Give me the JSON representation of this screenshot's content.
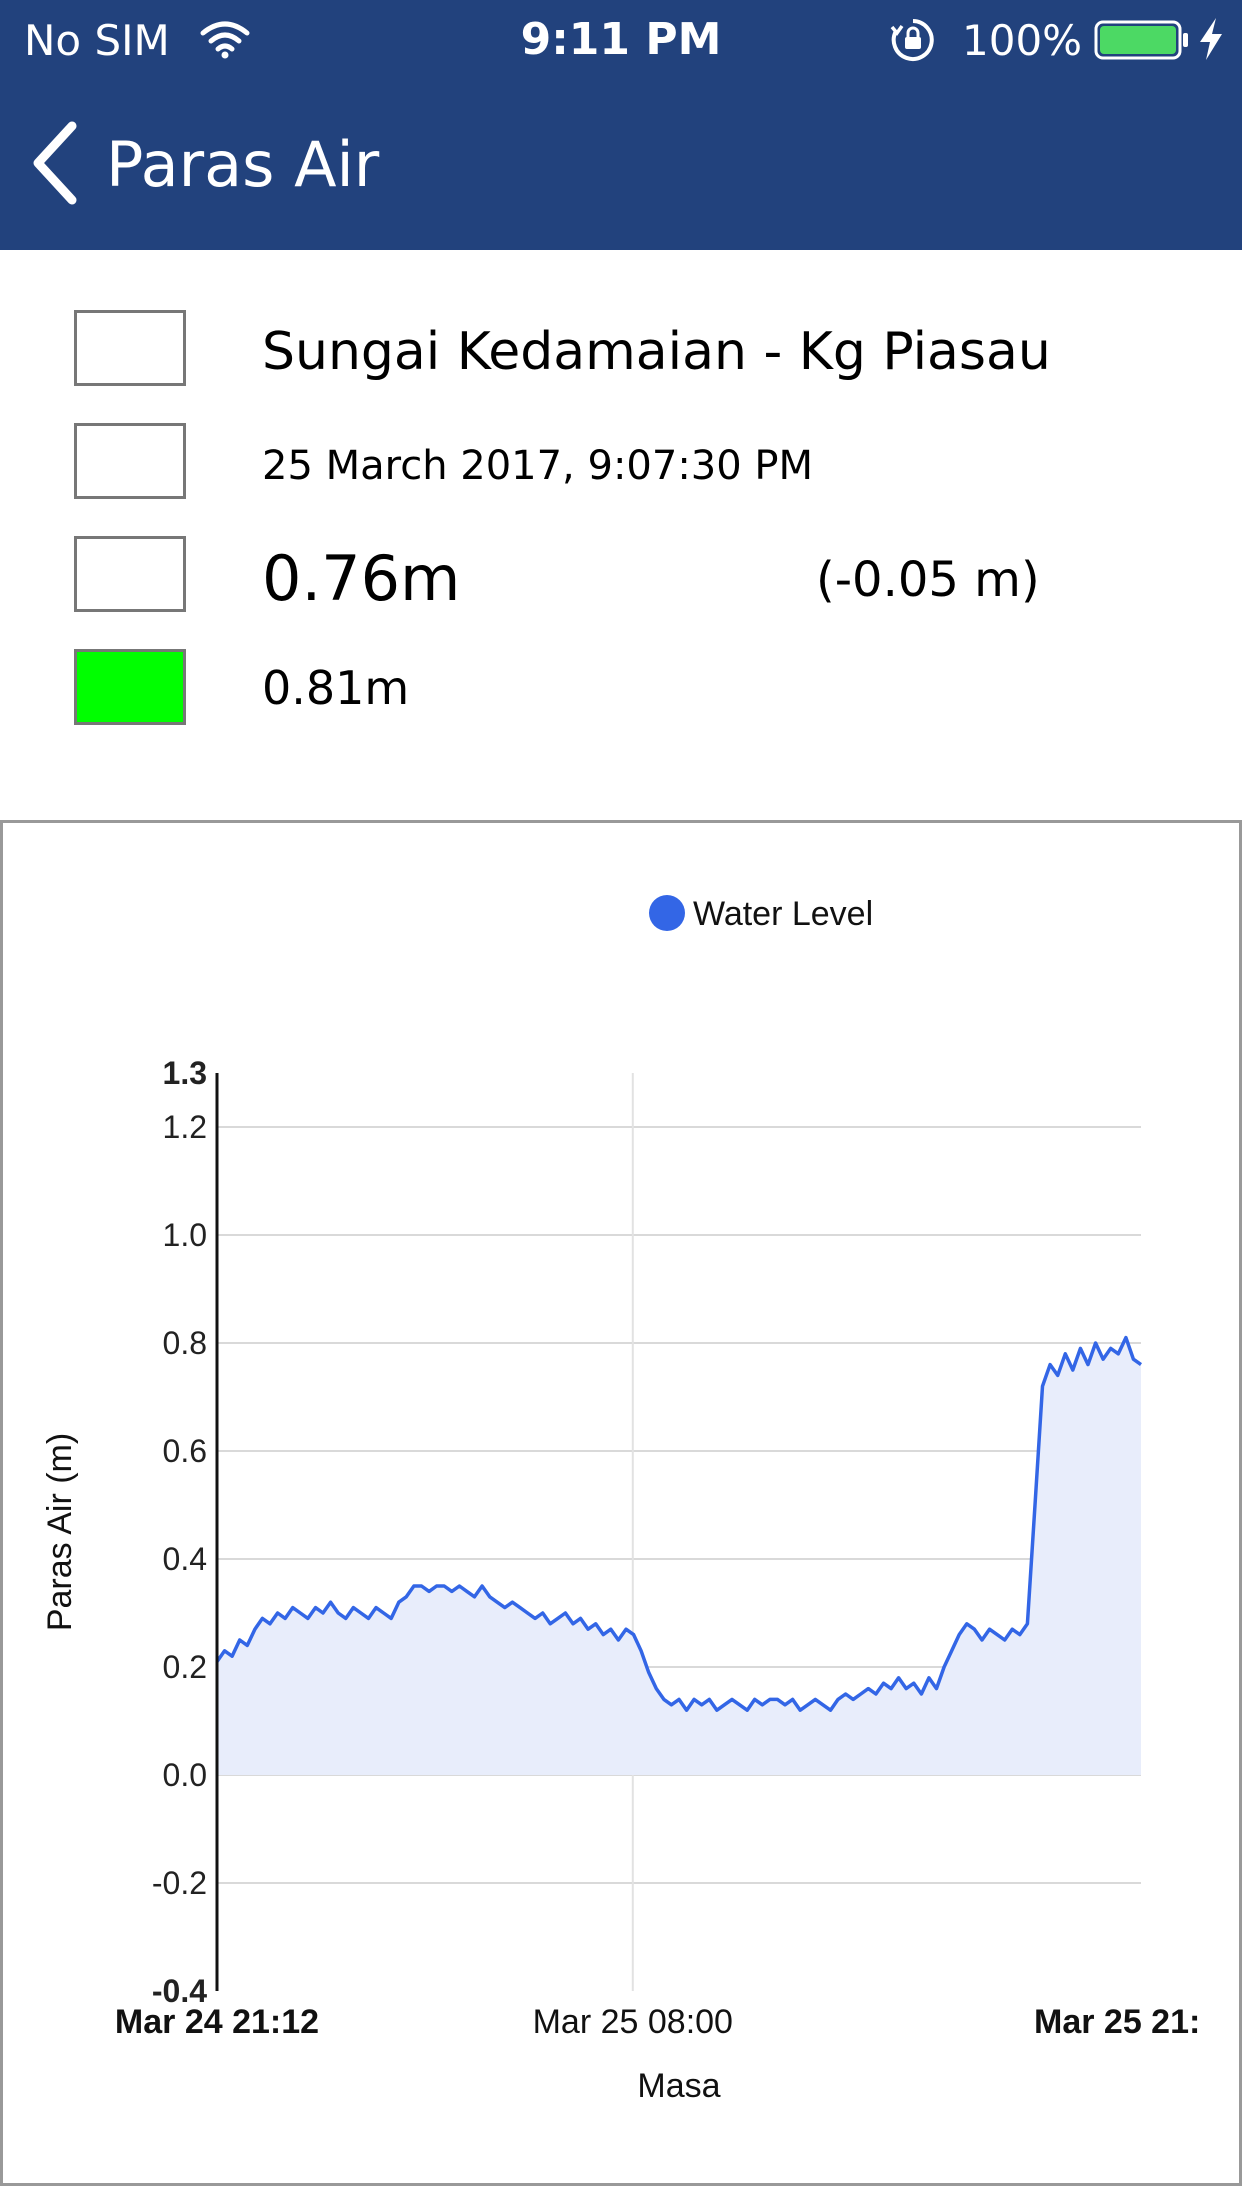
{
  "status_bar": {
    "carrier": "No SIM",
    "time": "9:11 PM",
    "battery": "100%",
    "icons": [
      "wifi-icon",
      "orientation-lock-icon",
      "battery-icon",
      "charging-icon"
    ]
  },
  "nav": {
    "title": "Paras Air",
    "back_icon": "chevron-left-icon"
  },
  "info": {
    "station": "Sungai Kedamaian - Kg Piasau",
    "datetime": "25 March 2017, 9:07:30 PM",
    "level": "0.76m",
    "change": "(-0.05 m)",
    "reference_level": "0.81m",
    "reference_color": "#00ff00"
  },
  "chart_data": {
    "type": "area",
    "legend": "Water Level",
    "series_color": "#3366e6",
    "fill_color": "#e8edfb",
    "xlabel": "Masa",
    "ylabel": "Paras Air (m)",
    "ylim": [
      -0.4,
      1.3
    ],
    "yticks": [
      {
        "v": 1.3,
        "label": "1.3",
        "bold": true
      },
      {
        "v": 1.2,
        "label": "1.2",
        "bold": false
      },
      {
        "v": 1.0,
        "label": "1.0",
        "bold": false
      },
      {
        "v": 0.8,
        "label": "0.8",
        "bold": false
      },
      {
        "v": 0.6,
        "label": "0.6",
        "bold": false
      },
      {
        "v": 0.4,
        "label": "0.4",
        "bold": false
      },
      {
        "v": 0.2,
        "label": "0.2",
        "bold": false
      },
      {
        "v": 0.0,
        "label": "0.0",
        "bold": false
      },
      {
        "v": -0.2,
        "label": "-0.2",
        "bold": false
      },
      {
        "v": -0.4,
        "label": "-0.4",
        "bold": true
      }
    ],
    "xticks": [
      {
        "t": 0,
        "label": "Mar 24 21:12",
        "bold": true
      },
      {
        "t": 0.45,
        "label": "Mar 25 08:00",
        "bold": false
      },
      {
        "t": 1,
        "label": "Mar 25 21:",
        "bold": true
      }
    ],
    "values": [
      0.21,
      0.23,
      0.22,
      0.25,
      0.24,
      0.27,
      0.29,
      0.28,
      0.3,
      0.29,
      0.31,
      0.3,
      0.29,
      0.31,
      0.3,
      0.32,
      0.3,
      0.29,
      0.31,
      0.3,
      0.29,
      0.31,
      0.3,
      0.29,
      0.32,
      0.33,
      0.35,
      0.35,
      0.34,
      0.35,
      0.35,
      0.34,
      0.35,
      0.34,
      0.33,
      0.35,
      0.33,
      0.32,
      0.31,
      0.32,
      0.31,
      0.3,
      0.29,
      0.3,
      0.28,
      0.29,
      0.3,
      0.28,
      0.29,
      0.27,
      0.28,
      0.26,
      0.27,
      0.25,
      0.27,
      0.26,
      0.23,
      0.19,
      0.16,
      0.14,
      0.13,
      0.14,
      0.12,
      0.14,
      0.13,
      0.14,
      0.12,
      0.13,
      0.14,
      0.13,
      0.12,
      0.14,
      0.13,
      0.14,
      0.14,
      0.13,
      0.14,
      0.12,
      0.13,
      0.14,
      0.13,
      0.12,
      0.14,
      0.15,
      0.14,
      0.15,
      0.16,
      0.15,
      0.17,
      0.16,
      0.18,
      0.16,
      0.17,
      0.15,
      0.18,
      0.16,
      0.2,
      0.23,
      0.26,
      0.28,
      0.27,
      0.25,
      0.27,
      0.26,
      0.25,
      0.27,
      0.26,
      0.28,
      0.5,
      0.72,
      0.76,
      0.74,
      0.78,
      0.75,
      0.79,
      0.76,
      0.8,
      0.77,
      0.79,
      0.78,
      0.81,
      0.77,
      0.76
    ]
  }
}
